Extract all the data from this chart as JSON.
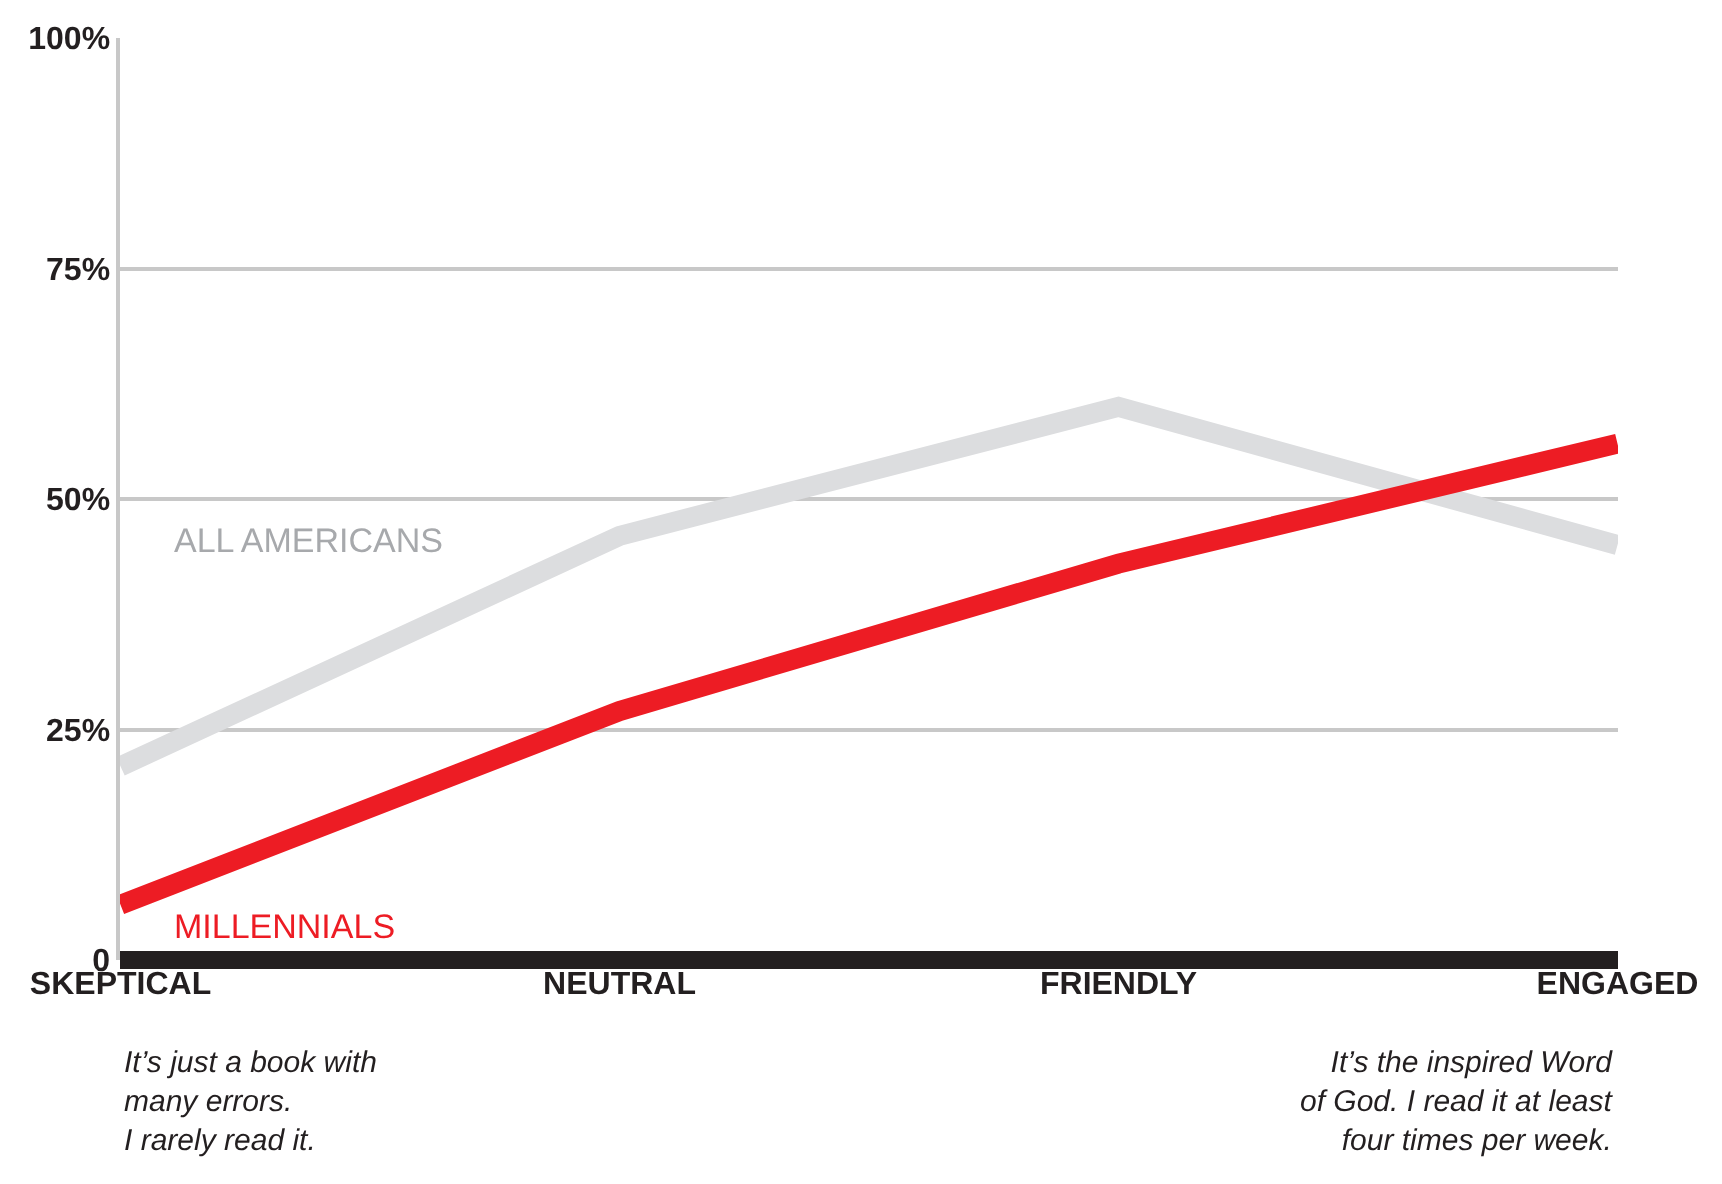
{
  "chart_data": {
    "type": "line",
    "categories": [
      "SKEPTICAL",
      "NEUTRAL",
      "FRIENDLY",
      "ENGAGED"
    ],
    "series": [
      {
        "name": "ALL AMERICANS",
        "color": "#dcdddf",
        "values": [
          21,
          46,
          60,
          45
        ]
      },
      {
        "name": "MILLENNIALS",
        "color": "#ed1c24",
        "values": [
          6,
          27,
          43,
          56
        ]
      }
    ],
    "ylim": [
      0,
      100
    ],
    "yticks": [
      {
        "value": 0,
        "label": "0"
      },
      {
        "value": 25,
        "label": "25%"
      },
      {
        "value": 50,
        "label": "50%"
      },
      {
        "value": 75,
        "label": "75%"
      },
      {
        "value": 100,
        "label": "100%"
      }
    ],
    "grid": "y",
    "legend": false,
    "marker": "none",
    "line_style": "solid",
    "annotations": [
      "It’s just a book with\nmany errors.\nI rarely read it.",
      "It’s the inspired Word\nof God. I read it at least\nfour times per week."
    ]
  }
}
